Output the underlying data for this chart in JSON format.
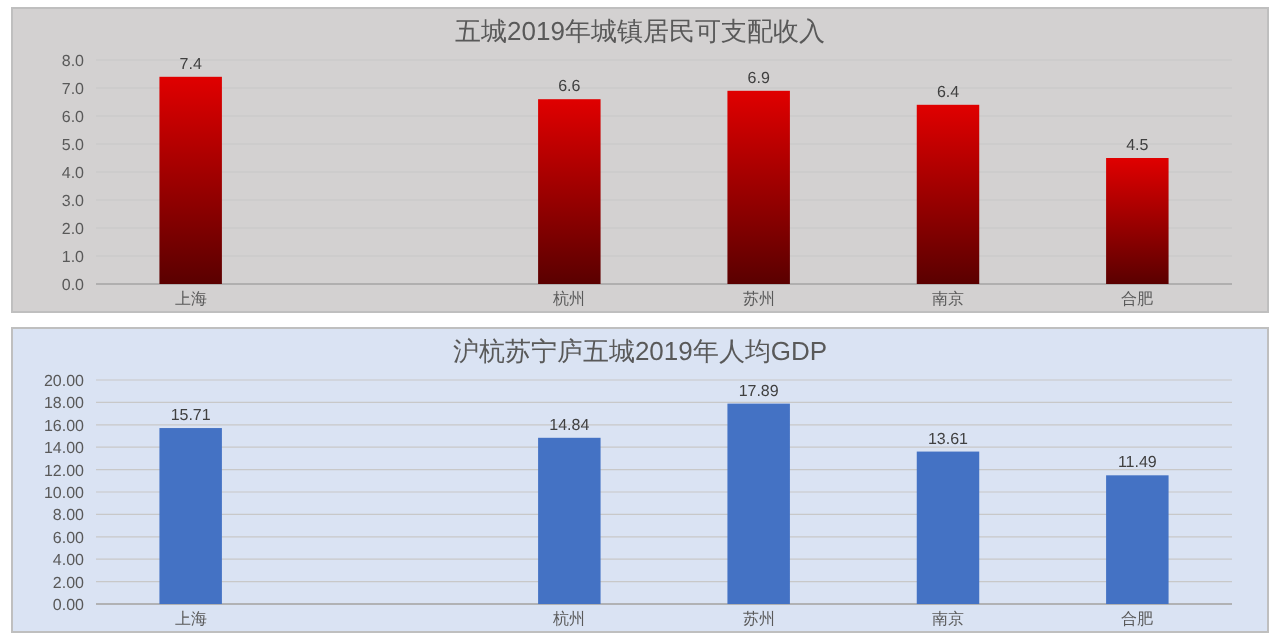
{
  "chart_data": [
    {
      "type": "bar",
      "title": "五城2019年城镇居民可支配收入",
      "categories": [
        "上海",
        null,
        "杭州",
        "苏州",
        "南京",
        "合肥"
      ],
      "series": [
        {
          "color": "#e00000",
          "values": [
            7.4,
            null,
            6.6,
            6.9,
            6.4,
            4.5
          ]
        }
      ],
      "ylim": [
        0,
        8
      ],
      "yticks": [
        {
          "value": 0,
          "label": "0.0"
        },
        {
          "value": 1,
          "label": "1.0"
        },
        {
          "value": 2,
          "label": "2.0"
        },
        {
          "value": 3,
          "label": "3.0"
        },
        {
          "value": 4,
          "label": "4.0"
        },
        {
          "value": 5,
          "label": "5.0"
        },
        {
          "value": 6,
          "label": "6.0"
        },
        {
          "value": 7,
          "label": "7.0"
        },
        {
          "value": 8,
          "label": "8.0"
        }
      ],
      "grid": "y",
      "data_labels": true
    },
    {
      "type": "bar",
      "title": "沪杭苏宁庐五城2019年人均GDP",
      "categories": [
        "上海",
        null,
        "杭州",
        "苏州",
        "南京",
        "合肥"
      ],
      "series": [
        {
          "color": "#4472c4",
          "values": [
            15.71,
            null,
            14.84,
            17.89,
            13.61,
            11.49
          ]
        }
      ],
      "ylim": [
        0,
        20
      ],
      "yticks": [
        {
          "value": 0,
          "label": "0.00"
        },
        {
          "value": 2,
          "label": "2.00"
        },
        {
          "value": 4,
          "label": "4.00"
        },
        {
          "value": 6,
          "label": "6.00"
        },
        {
          "value": 8,
          "label": "8.00"
        },
        {
          "value": 10,
          "label": "10.00"
        },
        {
          "value": 12,
          "label": "12.00"
        },
        {
          "value": 14,
          "label": "14.00"
        },
        {
          "value": 16,
          "label": "16.00"
        },
        {
          "value": 18,
          "label": "18.00"
        },
        {
          "value": 20,
          "label": "20.00"
        }
      ],
      "grid": "y",
      "data_labels": true
    }
  ]
}
